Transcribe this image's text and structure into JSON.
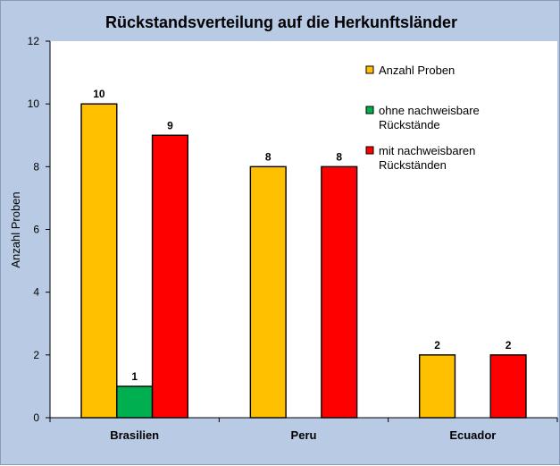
{
  "chart_data": {
    "type": "bar",
    "title": "Rückstandsverteilung auf die Herkunftsländer",
    "xlabel": "",
    "ylabel": "Anzahl Proben",
    "ylim": [
      0,
      12
    ],
    "yticks": [
      "0",
      "2",
      "4",
      "6",
      "8",
      "10",
      "12"
    ],
    "categories": [
      "Brasilien",
      "Peru",
      "Ecuador"
    ],
    "series": [
      {
        "name": "Anzahl Proben",
        "color": "#ffc000",
        "values": [
          10,
          8,
          2
        ]
      },
      {
        "name": "ohne nachweisbare Rückstände",
        "color": "#00b050",
        "values": [
          1,
          null,
          null
        ]
      },
      {
        "name": "mit nachweisbaren Rückständen",
        "color": "#ff0000",
        "values": [
          9,
          8,
          2
        ]
      }
    ],
    "legend": {
      "placement": "top-right",
      "items": [
        {
          "lines": [
            "Anzahl Proben"
          ],
          "color": "#ffc000"
        },
        {
          "lines": [
            "ohne nachweisbare",
            "Rückstände"
          ],
          "color": "#00b050"
        },
        {
          "lines": [
            "mit nachweisbaren",
            "Rückständen"
          ],
          "color": "#ff0000"
        }
      ]
    },
    "data_labels": true,
    "grid": false
  }
}
